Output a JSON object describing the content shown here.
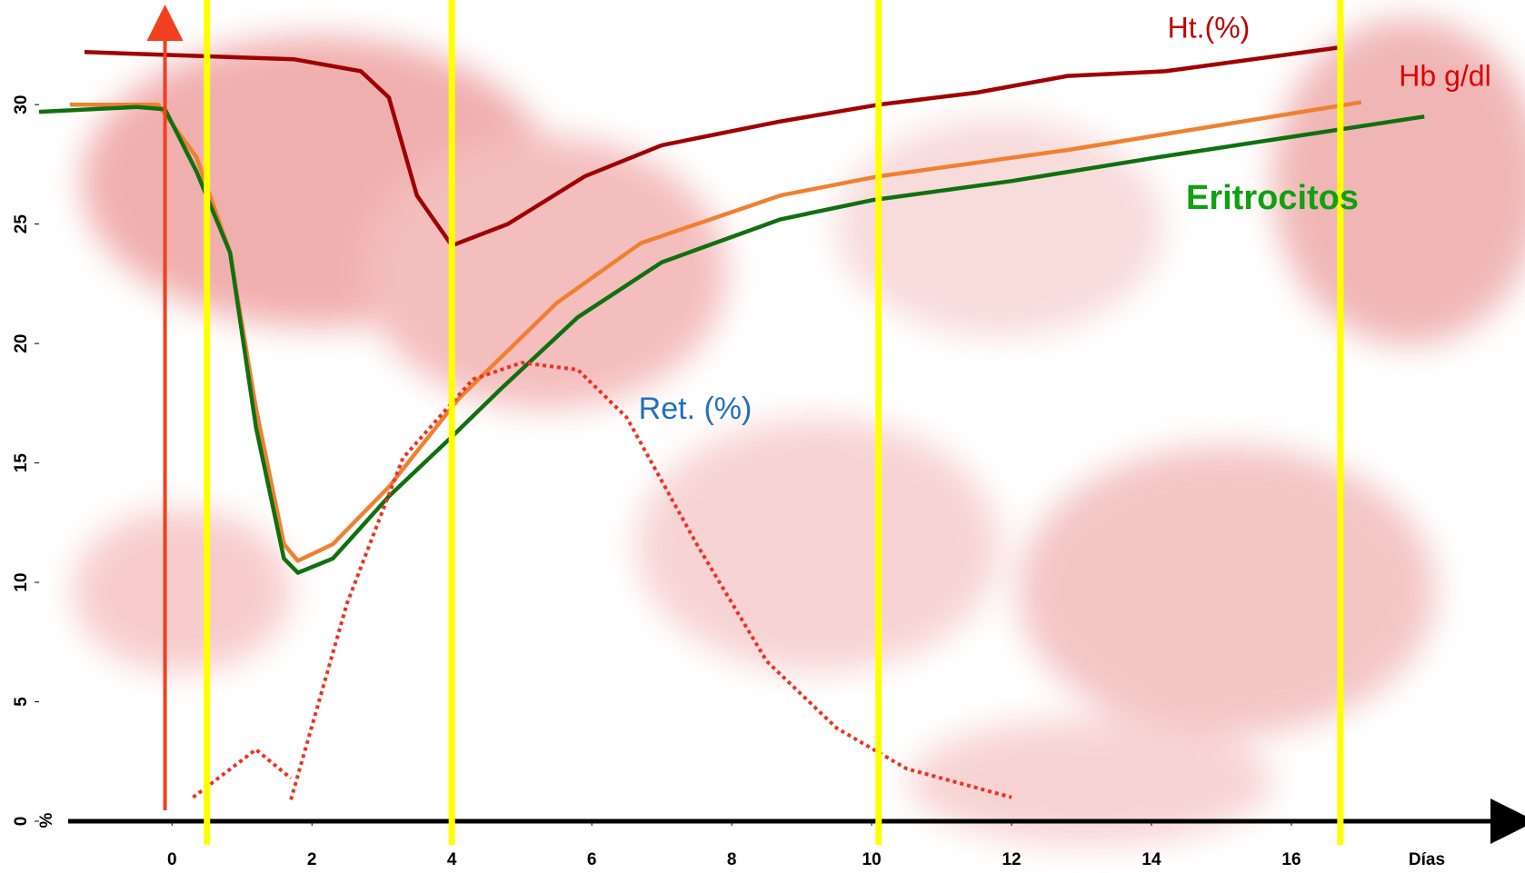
{
  "chart_data": {
    "type": "line",
    "ylabel": "%",
    "xlabel": "Días",
    "xlim": [
      -1.9,
      19.3
    ],
    "ylim": [
      0,
      34
    ],
    "xticks": [
      0,
      2,
      4,
      6,
      8,
      10,
      12,
      14,
      16
    ],
    "yticks": [
      0,
      5,
      10,
      15,
      20,
      25,
      30
    ],
    "event_line": {
      "x": -0.1,
      "color": "#f04020"
    },
    "vlines": {
      "x": [
        0.5,
        4,
        10.1,
        16.7
      ],
      "color": "#ffff00"
    },
    "series": [
      {
        "name": "Ht.(%)",
        "color": "#a00000",
        "dashed": false,
        "x": [
          -1.25,
          1.74,
          2.7,
          3.1,
          3.5,
          4.0,
          4.8,
          5.9,
          7.0,
          8.7,
          10.1,
          11.5,
          12.8,
          14.2,
          16.7
        ],
        "values": [
          32.2,
          31.9,
          31.4,
          30.3,
          26.2,
          24.1,
          25.0,
          27.0,
          28.3,
          29.3,
          30.0,
          30.5,
          31.2,
          31.4,
          32.4
        ]
      },
      {
        "name": "Hb g/dl",
        "color": "#f08030",
        "dashed": false,
        "x": [
          -1.46,
          -0.2,
          0.35,
          0.83,
          1.2,
          1.6,
          1.8,
          2.3,
          3.1,
          4.1,
          5.5,
          6.7,
          8.7,
          10.1,
          12.8,
          17.0
        ],
        "values": [
          30.0,
          30.0,
          27.8,
          23.8,
          17.3,
          11.6,
          10.9,
          11.6,
          14.0,
          17.7,
          21.7,
          24.2,
          26.2,
          27.0,
          28.1,
          30.1
        ]
      },
      {
        "name": "Eritrocitos",
        "color": "#107010",
        "dashed": false,
        "x": [
          -1.9,
          -0.5,
          -0.1,
          0.35,
          0.83,
          1.2,
          1.6,
          1.8,
          2.3,
          3.1,
          4.0,
          4.7,
          5.8,
          7.0,
          8.7,
          10.0,
          12.0,
          14.1,
          17.9
        ],
        "values": [
          29.7,
          29.9,
          29.8,
          27.2,
          23.8,
          16.5,
          11.0,
          10.4,
          11.0,
          13.6,
          16.1,
          18.1,
          21.1,
          23.4,
          25.2,
          26.0,
          26.8,
          27.8,
          29.5
        ]
      },
      {
        "name": "Ret. (%)",
        "color": "#f03020",
        "dashed": true,
        "x": [
          0.3,
          1.2,
          1.7,
          1.7,
          1.7,
          2.5,
          3.3,
          4.3,
          5.0,
          5.8,
          6.5,
          7.5,
          8.5,
          9.5,
          10.5,
          12.0
        ],
        "values": [
          1.0,
          3.0,
          1.8,
          null,
          0.9,
          9.1,
          15.2,
          18.5,
          19.2,
          18.9,
          16.9,
          11.6,
          6.7,
          3.9,
          2.2,
          1.0
        ]
      }
    ]
  }
}
